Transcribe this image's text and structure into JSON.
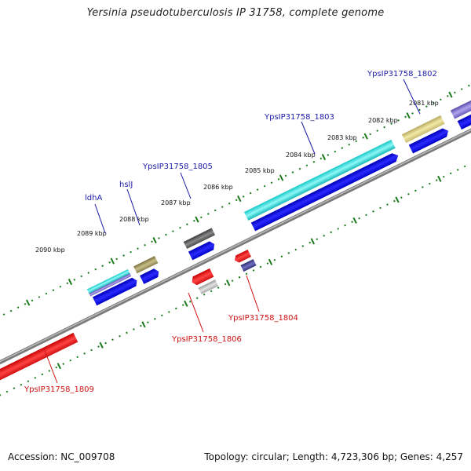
{
  "title": "Yersinia pseudotuberculosis IP 31758, complete genome",
  "footer": {
    "accession": "Accession: NC_009708",
    "stats": "Topology: circular; Length: 4,723,306 bp; Genes: 4,257"
  },
  "ticks": [
    "2090 kbp",
    "2089 kbp",
    "2088 kbp",
    "2087 kbp",
    "2086 kbp",
    "2085 kbp",
    "2084 kbp",
    "2083 kbp",
    "2082 kbp",
    "2081 kbp"
  ],
  "genes_forward": [
    "ldhA",
    "hslJ",
    "YpsIP31758_1805",
    "YpsIP31758_1803",
    "YpsIP31758_1802"
  ],
  "genes_reverse": [
    "YpsIP31758_1806",
    "YpsIP31758_1804",
    "YpsIP31758_1809"
  ],
  "colors": {
    "forward_label": "#1a1aa8",
    "reverse_label": "#cc1111",
    "cds_blue": "#0a0ae0",
    "backbone": "#7a7a7a",
    "tick_green": "#1a7a1a"
  }
}
